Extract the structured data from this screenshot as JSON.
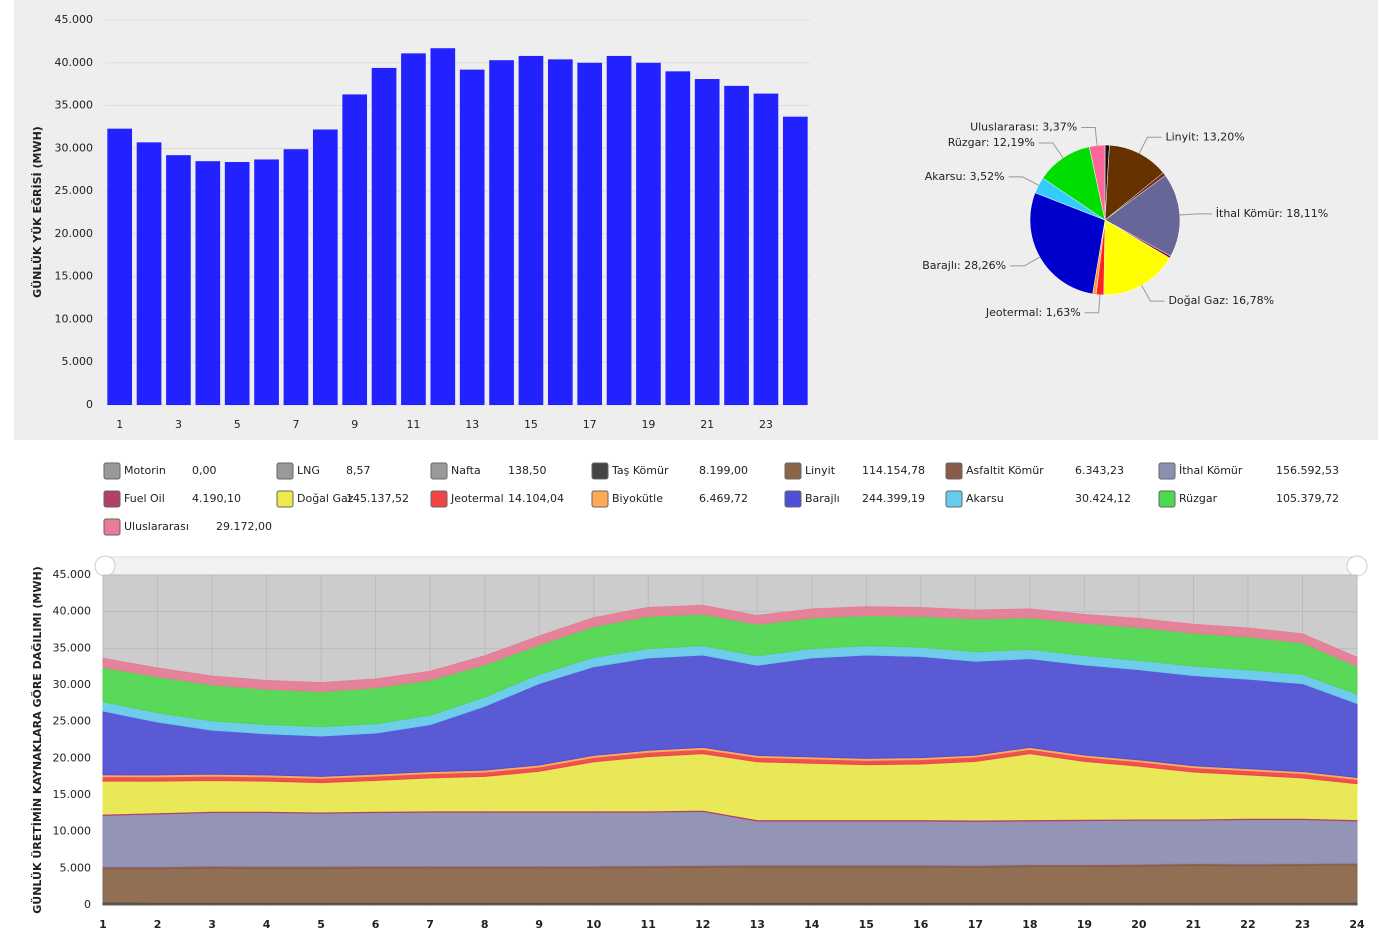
{
  "chart_data": [
    {
      "type": "bar",
      "y_label": "GÜNLÜK YÜK EĞRİSİ (MWH)",
      "color": "#2222ff",
      "grid": true,
      "categories": [
        "1",
        null,
        "3",
        null,
        "5",
        null,
        "7",
        null,
        "9",
        null,
        "11",
        null,
        "13",
        null,
        "15",
        null,
        "17",
        null,
        "19",
        null,
        "21",
        null,
        "23",
        null
      ],
      "values": [
        32300,
        30700,
        29200,
        28500,
        28400,
        28700,
        29900,
        32200,
        36300,
        39400,
        41100,
        41700,
        39200,
        40300,
        40800,
        40400,
        40000,
        40800,
        40000,
        39000,
        38100,
        37300,
        36400,
        33700
      ],
      "ylim": [
        0,
        45000
      ],
      "yticks": [
        0,
        {
          "value": 5000,
          "label": "5.000"
        },
        {
          "value": 10000,
          "label": "10.000"
        },
        {
          "value": 15000,
          "label": "15.000"
        },
        {
          "value": 20000,
          "label": "20.000"
        },
        {
          "value": 25000,
          "label": "25.000"
        },
        {
          "value": 30000,
          "label": "30.000"
        },
        {
          "value": 35000,
          "label": "35.000"
        },
        {
          "value": 40000,
          "label": "40.000"
        },
        {
          "value": 45000,
          "label": "45.000"
        }
      ]
    },
    {
      "type": "pie",
      "values": [
        0.95,
        13.2,
        0.73,
        18.11,
        0.48,
        16.78,
        1.63,
        0.75,
        28.26,
        3.52,
        12.19,
        3.37
      ],
      "value_labels": [
        null,
        "Linyit: 13,20%",
        null,
        "İthal Kömür: 18,11%",
        null,
        "Doğal Gaz: 16,78%",
        "Jeotermal: 1,63%",
        null,
        "Barajlı: 28,26%",
        "Akarsu: 3,52%",
        "Rüzgar: 12,19%",
        "Uluslararası: 3,37%"
      ],
      "colors": [
        "#111111",
        "#663300",
        "#6b2a1a",
        "#666699",
        "#990033",
        "#ffff00",
        "#ff2222",
        "#ff9933",
        "#0000cc",
        "#33ccff",
        "#00dd00",
        "#ff6699"
      ]
    },
    {
      "type": "stacked_area",
      "y_label": "GÜNLÜK ÜRETİMİN KAYNAKLARA GÖRE DAĞILIMI (MWH)",
      "grid": true,
      "x": [
        1,
        2,
        3,
        4,
        5,
        6,
        7,
        8,
        9,
        10,
        11,
        12,
        13,
        14,
        15,
        16,
        17,
        18,
        19,
        20,
        21,
        22,
        23,
        24
      ],
      "xlim": [
        1,
        24
      ],
      "xticks": [
        1,
        2,
        3,
        4,
        5,
        6,
        7,
        8,
        9,
        10,
        11,
        12,
        13,
        14,
        15,
        16,
        17,
        18,
        19,
        20,
        21,
        22,
        23,
        24
      ],
      "ylim": [
        0,
        45000
      ],
      "yticks": [
        0,
        {
          "value": 5000,
          "label": "5.000"
        },
        {
          "value": 10000,
          "label": "10.000"
        },
        {
          "value": 15000,
          "label": "15.000"
        },
        {
          "value": 20000,
          "label": "20.000"
        },
        {
          "value": 25000,
          "label": "25.000"
        },
        {
          "value": 30000,
          "label": "30.000"
        },
        {
          "value": 35000,
          "label": "35.000"
        },
        {
          "value": 40000,
          "label": "40.000"
        },
        {
          "value": 45000,
          "label": "45.000"
        }
      ],
      "series": [
        {
          "name": "Motorin",
          "color": "#999999",
          "total": 0,
          "total_label": "0,00",
          "values": [
            0,
            0,
            0,
            0,
            0,
            0,
            0,
            0,
            0,
            0,
            0,
            0,
            0,
            0,
            0,
            0,
            0,
            0,
            0,
            0,
            0,
            0,
            0,
            0
          ]
        },
        {
          "name": "LNG",
          "color": "#999999",
          "total": 8.57,
          "total_label": "8,57",
          "values": [
            8.57,
            0,
            0,
            0,
            0,
            0,
            0,
            0,
            0,
            0,
            0,
            0,
            0,
            0,
            0,
            0,
            0,
            0,
            0,
            0,
            0,
            0,
            0,
            0
          ]
        },
        {
          "name": "Nafta",
          "color": "#999999",
          "total": 138.5,
          "total_label": "138,50",
          "values": [
            5.77,
            5.77,
            5.77,
            5.77,
            5.77,
            5.77,
            5.77,
            5.77,
            5.77,
            5.77,
            5.77,
            5.77,
            5.77,
            5.77,
            5.77,
            5.77,
            5.77,
            5.77,
            5.77,
            5.77,
            5.77,
            5.77,
            5.77,
            5.77
          ]
        },
        {
          "name": "Taş Kömür",
          "color": "#444444",
          "total": 8199,
          "total_label": "8.199,00",
          "values": [
            340,
            340,
            340,
            340,
            340,
            340,
            340,
            340,
            340,
            340,
            340,
            340,
            340,
            340,
            340,
            340,
            340,
            340,
            340,
            340,
            340,
            340,
            340,
            340
          ]
        },
        {
          "name": "Linyit",
          "color": "#8b6547",
          "total": 114154.78,
          "total_label": "114.154,78",
          "values": [
            4600,
            4600,
            4700,
            4650,
            4650,
            4700,
            4700,
            4700,
            4700,
            4700,
            4750,
            4800,
            4850,
            4850,
            4850,
            4850,
            4800,
            4900,
            4900,
            4950,
            5050,
            5000,
            5050,
            5100
          ]
        },
        {
          "name": "Asfaltit Kömür",
          "color": "#8b5a4a",
          "total": 6343.23,
          "total_label": "6.343,23",
          "values": [
            265,
            265,
            265,
            265,
            265,
            265,
            265,
            265,
            265,
            265,
            265,
            265,
            265,
            265,
            265,
            265,
            265,
            265,
            265,
            265,
            265,
            265,
            265,
            265
          ]
        },
        {
          "name": "İthal Kömür",
          "color": "#8e8eb5",
          "total": 156592.53,
          "total_label": "156.592,53",
          "values": [
            7000,
            7200,
            7300,
            7350,
            7250,
            7300,
            7350,
            7350,
            7350,
            7350,
            7300,
            7350,
            6000,
            6000,
            6000,
            6000,
            6000,
            5950,
            6000,
            6000,
            5900,
            6050,
            6000,
            5750
          ]
        },
        {
          "name": "Fuel Oil",
          "color": "#b0406b",
          "total": 4190.1,
          "total_label": "4.190,10",
          "values": [
            175,
            175,
            175,
            175,
            175,
            175,
            175,
            175,
            175,
            175,
            175,
            175,
            175,
            175,
            175,
            175,
            175,
            175,
            175,
            175,
            175,
            175,
            175,
            175
          ]
        },
        {
          "name": "Doğal Gaz",
          "color": "#ebeb4c",
          "total": 145137.52,
          "total_label": "145.137,52",
          "values": [
            4500,
            4300,
            4200,
            4100,
            4000,
            4200,
            4500,
            4700,
            5400,
            6700,
            7400,
            7700,
            7900,
            7700,
            7500,
            7600,
            8000,
            9000,
            7900,
            7200,
            6400,
            5900,
            5500,
            4900
          ]
        },
        {
          "name": "Jeotermal",
          "color": "#f04545",
          "total": 14104.04,
          "total_label": "14.104,04",
          "values": [
            590,
            590,
            590,
            590,
            590,
            590,
            590,
            590,
            590,
            590,
            590,
            590,
            590,
            590,
            590,
            590,
            590,
            590,
            590,
            590,
            590,
            590,
            590,
            590
          ]
        },
        {
          "name": "Biyokütle",
          "color": "#ffaa55",
          "total": 6469.72,
          "total_label": "6.469,72",
          "values": [
            270,
            270,
            270,
            270,
            270,
            270,
            270,
            270,
            270,
            270,
            270,
            270,
            270,
            270,
            270,
            270,
            270,
            270,
            270,
            270,
            270,
            270,
            270,
            270
          ]
        },
        {
          "name": "Barajlı",
          "color": "#4e4ed6",
          "total": 244399.19,
          "total_label": "244.399,19",
          "values": [
            8700,
            7200,
            6000,
            5600,
            5500,
            5600,
            6400,
            8700,
            11100,
            12100,
            12600,
            12600,
            12300,
            13500,
            14100,
            13800,
            12800,
            12100,
            12300,
            12300,
            12300,
            12200,
            12000,
            10100
          ]
        },
        {
          "name": "Akarsu",
          "color": "#66ccee",
          "total": 30424.12,
          "total_label": "30.424,12",
          "values": [
            1270,
            1270,
            1270,
            1270,
            1270,
            1270,
            1270,
            1270,
            1270,
            1270,
            1270,
            1270,
            1270,
            1270,
            1270,
            1270,
            1270,
            1270,
            1270,
            1270,
            1270,
            1270,
            1270,
            1270
          ]
        },
        {
          "name": "Rüzgar",
          "color": "#4dd94d",
          "total": 105379.72,
          "total_label": "105.379,72",
          "values": [
            4700,
            4900,
            4900,
            4800,
            4800,
            4900,
            4800,
            4400,
            4000,
            4200,
            4400,
            4300,
            4300,
            4200,
            4100,
            4200,
            4500,
            4300,
            4400,
            4500,
            4500,
            4500,
            4300,
            3800
          ]
        },
        {
          "name": "Uluslararası",
          "color": "#e87b96",
          "total": 29172,
          "total_label": "29.172,00",
          "values": [
            1200,
            1200,
            1200,
            1200,
            1200,
            1200,
            1200,
            1200,
            1200,
            1200,
            1200,
            1200,
            1200,
            1200,
            1200,
            1200,
            1200,
            1200,
            1200,
            1200,
            1200,
            1200,
            1200,
            1200
          ]
        }
      ]
    }
  ]
}
